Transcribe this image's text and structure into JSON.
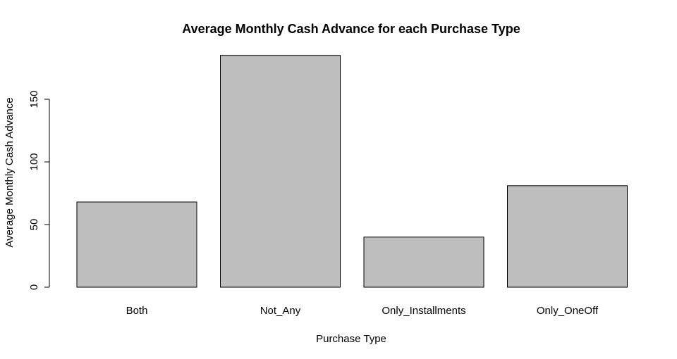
{
  "chart_data": {
    "type": "bar",
    "title": "Average Monthly Cash Advance for each Purchase Type",
    "xlabel": "Purchase Type",
    "ylabel": "Average Monthly Cash Advance",
    "categories": [
      "Both",
      "Not_Any",
      "Only_Installments",
      "Only_OneOff"
    ],
    "values": [
      68,
      185,
      40,
      81
    ],
    "ylim": [
      0,
      185
    ],
    "yticks": [
      0,
      50,
      100,
      150
    ],
    "bar_color": "#bebebe",
    "grid": false,
    "legend": "none"
  }
}
